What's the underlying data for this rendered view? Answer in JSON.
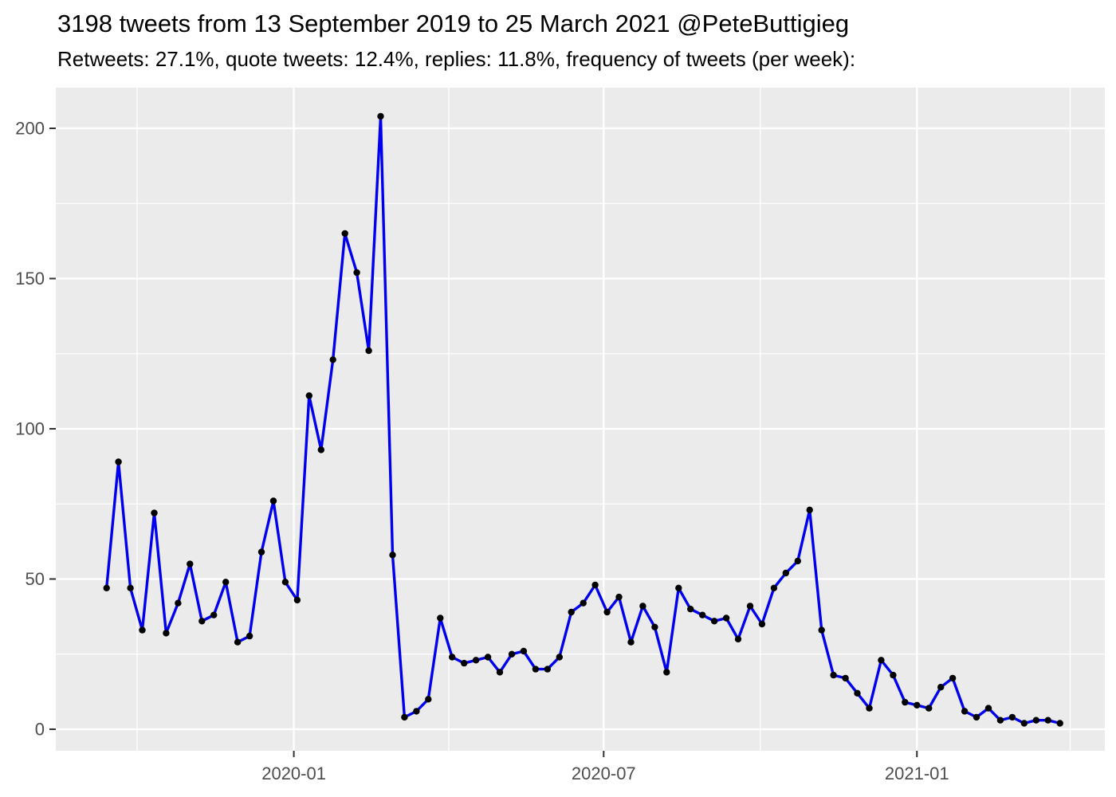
{
  "header": {
    "title": "3198 tweets from 13 September 2019 to 25 March 2021 @PeteButtigieg",
    "subtitle": "Retweets: 27.1%, quote tweets: 12.4%, replies: 11.8%, frequency of tweets (per week):"
  },
  "chart_data": {
    "type": "line",
    "title": "3198 tweets from 13 September 2019 to 25 March 2021 @PeteButtigieg",
    "subtitle": "Retweets: 27.1%, quote tweets: 12.4%, replies: 11.8%, frequency of tweets (per week):",
    "xlabel": "",
    "ylabel": "",
    "series_name": "tweets per week",
    "x": [
      "2019-09-13",
      "2019-09-20",
      "2019-09-27",
      "2019-10-04",
      "2019-10-11",
      "2019-10-18",
      "2019-10-25",
      "2019-11-01",
      "2019-11-08",
      "2019-11-15",
      "2019-11-22",
      "2019-11-29",
      "2019-12-06",
      "2019-12-13",
      "2019-12-20",
      "2019-12-27",
      "2020-01-03",
      "2020-01-10",
      "2020-01-17",
      "2020-01-24",
      "2020-01-31",
      "2020-02-07",
      "2020-02-14",
      "2020-02-21",
      "2020-02-28",
      "2020-03-06",
      "2020-03-13",
      "2020-03-20",
      "2020-03-27",
      "2020-04-03",
      "2020-04-10",
      "2020-04-17",
      "2020-04-24",
      "2020-05-01",
      "2020-05-08",
      "2020-05-15",
      "2020-05-22",
      "2020-05-29",
      "2020-06-05",
      "2020-06-12",
      "2020-06-19",
      "2020-06-26",
      "2020-07-03",
      "2020-07-10",
      "2020-07-17",
      "2020-07-24",
      "2020-07-31",
      "2020-08-07",
      "2020-08-14",
      "2020-08-21",
      "2020-08-28",
      "2020-09-04",
      "2020-09-11",
      "2020-09-18",
      "2020-09-25",
      "2020-10-02",
      "2020-10-09",
      "2020-10-16",
      "2020-10-23",
      "2020-10-30",
      "2020-11-06",
      "2020-11-13",
      "2020-11-20",
      "2020-11-27",
      "2020-12-04",
      "2020-12-11",
      "2020-12-18",
      "2020-12-25",
      "2021-01-01",
      "2021-01-08",
      "2021-01-15",
      "2021-01-22",
      "2021-01-29",
      "2021-02-05",
      "2021-02-12",
      "2021-02-19",
      "2021-02-26",
      "2021-03-05",
      "2021-03-12",
      "2021-03-19",
      "2021-03-26"
    ],
    "values": [
      47,
      89,
      47,
      33,
      72,
      32,
      42,
      55,
      36,
      38,
      49,
      29,
      31,
      59,
      76,
      49,
      43,
      111,
      93,
      123,
      165,
      152,
      126,
      204,
      58,
      4,
      6,
      10,
      37,
      24,
      22,
      23,
      24,
      19,
      25,
      26,
      20,
      20,
      24,
      39,
      42,
      48,
      39,
      44,
      29,
      41,
      34,
      19,
      47,
      40,
      38,
      36,
      37,
      30,
      41,
      35,
      47,
      52,
      56,
      73,
      33,
      18,
      17,
      12,
      7,
      23,
      18,
      9,
      8,
      7,
      14,
      17,
      6,
      4,
      7,
      3,
      4,
      2,
      3,
      3,
      2
    ],
    "x_axis": {
      "major_ticks": [
        {
          "date": "2020-01-01",
          "label": "2020-01"
        },
        {
          "date": "2020-07-01",
          "label": "2020-07"
        },
        {
          "date": "2021-01-01",
          "label": "2021-01"
        }
      ],
      "minor_tick_dates": [
        "2019-10-01",
        "2020-04-01",
        "2020-10-01",
        "2021-04-01"
      ],
      "range": [
        "2019-08-14",
        "2021-04-21"
      ]
    },
    "y_axis": {
      "major_ticks": [
        0,
        50,
        100,
        150,
        200
      ],
      "minor_ticks": [
        25,
        75,
        125,
        175
      ],
      "range": [
        -7,
        213
      ]
    },
    "grid": true,
    "legend": "none"
  },
  "colors": {
    "line": "#0000EE",
    "point": "#000000",
    "panel_bg": "#EBEBEB",
    "grid": "#FFFFFF",
    "axis_text": "#4D4D4D",
    "title_text": "#000000",
    "tick_mark": "#333333",
    "page_bg": "#FFFFFF"
  }
}
